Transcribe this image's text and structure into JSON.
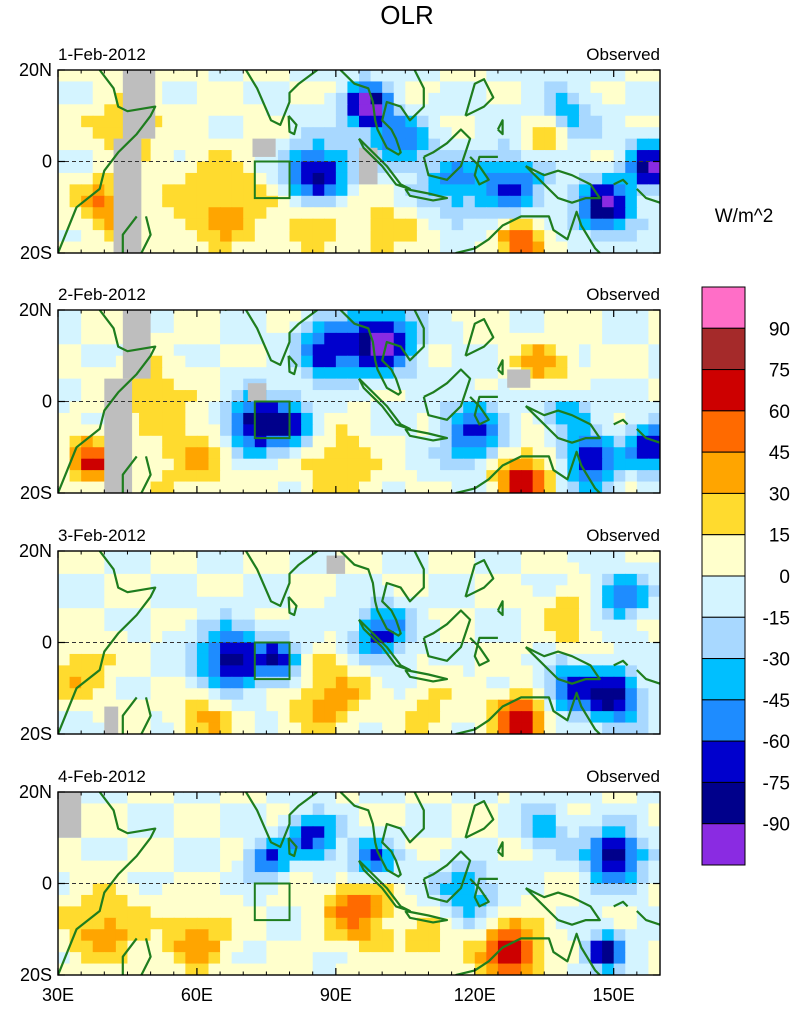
{
  "chart_data": {
    "type": "heatmap",
    "title": "OLR",
    "units_label": "W/m^2",
    "panels": [
      {
        "date": "1-Feb-2012",
        "tag": "Observed"
      },
      {
        "date": "2-Feb-2012",
        "tag": "Observed"
      },
      {
        "date": "3-Feb-2012",
        "tag": "Observed"
      },
      {
        "date": "4-Feb-2012",
        "tag": "Observed"
      }
    ],
    "lon_range": [
      30,
      160
    ],
    "lat_range": [
      -20,
      20
    ],
    "x_ticks": [
      {
        "value": 30,
        "label": "30E"
      },
      {
        "value": 60,
        "label": "60E"
      },
      {
        "value": 90,
        "label": "90E"
      },
      {
        "value": 120,
        "label": "120E"
      },
      {
        "value": 150,
        "label": "150E"
      }
    ],
    "y_ticks": [
      {
        "value": 20,
        "label": "20N"
      },
      {
        "value": 0,
        "label": "0"
      },
      {
        "value": -20,
        "label": "20S"
      }
    ],
    "colorbar": {
      "levels": [
        "90",
        "75",
        "60",
        "45",
        "30",
        "15",
        "0",
        "-15",
        "-30",
        "-45",
        "-60",
        "-75",
        "-90"
      ],
      "colors": [
        "#ff6ec7",
        "#a52a2a",
        "#cd0000",
        "#ff6a00",
        "#ffa500",
        "#ffdb2e",
        "#ffffcc",
        "#d4f4ff",
        "#a8d8ff",
        "#00bfff",
        "#1e8cff",
        "#0000cd",
        "#00008b",
        "#8a2be2"
      ]
    },
    "style": {
      "coast_color": "#1e7d1e",
      "missing_color": "#bebebe",
      "box_color": "#1e7d1e"
    }
  }
}
